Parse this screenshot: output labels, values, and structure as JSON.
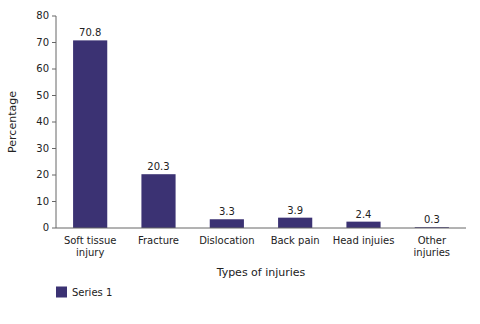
{
  "chart_data": {
    "type": "bar",
    "categories": [
      "Soft tissue injury",
      "Fracture",
      "Dislocation",
      "Back pain",
      "Head injuies",
      "Other injuries"
    ],
    "series": [
      {
        "name": "Series 1",
        "color": "#3b3273",
        "values": [
          70.8,
          20.3,
          3.3,
          3.9,
          2.4,
          0.3
        ]
      }
    ],
    "xlabel": "Types of injuries",
    "ylabel": "Percentage",
    "ylim": [
      0,
      80
    ],
    "yticks": [
      0,
      10,
      20,
      30,
      40,
      50,
      60,
      70,
      80
    ],
    "grid": false,
    "legend": "bottom",
    "data_labels": true
  }
}
